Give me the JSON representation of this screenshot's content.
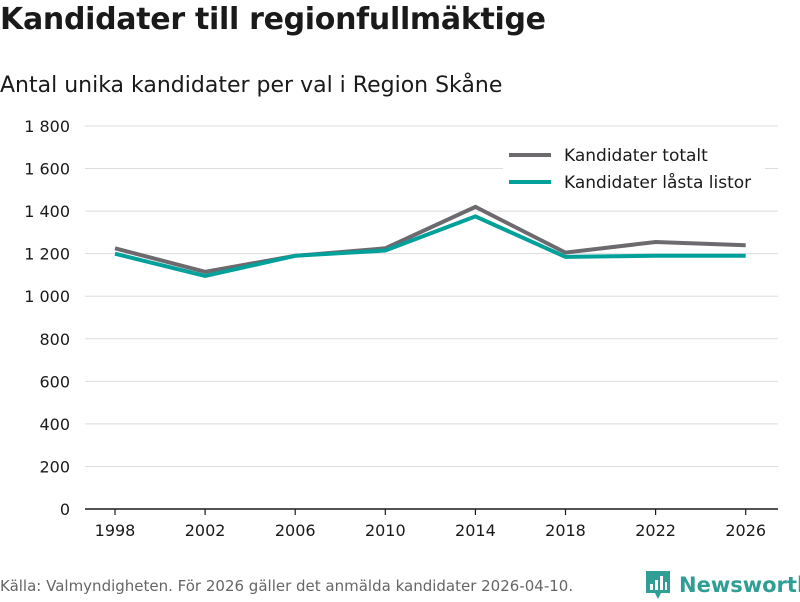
{
  "header": {
    "title": "Kandidater till regionfullmäktige",
    "subtitle": "Antal unika kandidater per val i Region Skåne"
  },
  "footer": {
    "source": "Källa: Valmyndigheten. För 2026 gäller det anmälda kandidater 2026-04-10."
  },
  "brand": {
    "name": "Newsworthy",
    "color": "#2f9e94",
    "icon": "newsworthy-logo-icon"
  },
  "chart_data": {
    "type": "line",
    "title": "Kandidater till regionfullmäktige",
    "subtitle": "Antal unika kandidater per val i Region Skåne",
    "xlabel": "",
    "ylabel": "",
    "categories": [
      "1998",
      "2002",
      "2006",
      "2010",
      "2014",
      "2018",
      "2022",
      "2026"
    ],
    "y_ticks": [
      0,
      200,
      400,
      600,
      800,
      1000,
      1200,
      1400,
      1600,
      1800
    ],
    "y_tick_labels": [
      "0",
      "200",
      "400",
      "600",
      "800",
      "1 000",
      "1 200",
      "1 400",
      "1 600",
      "1 800"
    ],
    "ylim": [
      0,
      1800
    ],
    "grid": true,
    "legend_position": "top-right",
    "series": [
      {
        "name": "Kandidater totalt",
        "color": "#6d6a6f",
        "values": [
          1225,
          1115,
          1190,
          1225,
          1420,
          1205,
          1255,
          1240
        ]
      },
      {
        "name": "Kandidater låsta listor",
        "color": "#00a19a",
        "values": [
          1200,
          1095,
          1190,
          1215,
          1375,
          1185,
          1190,
          1190
        ]
      }
    ]
  }
}
